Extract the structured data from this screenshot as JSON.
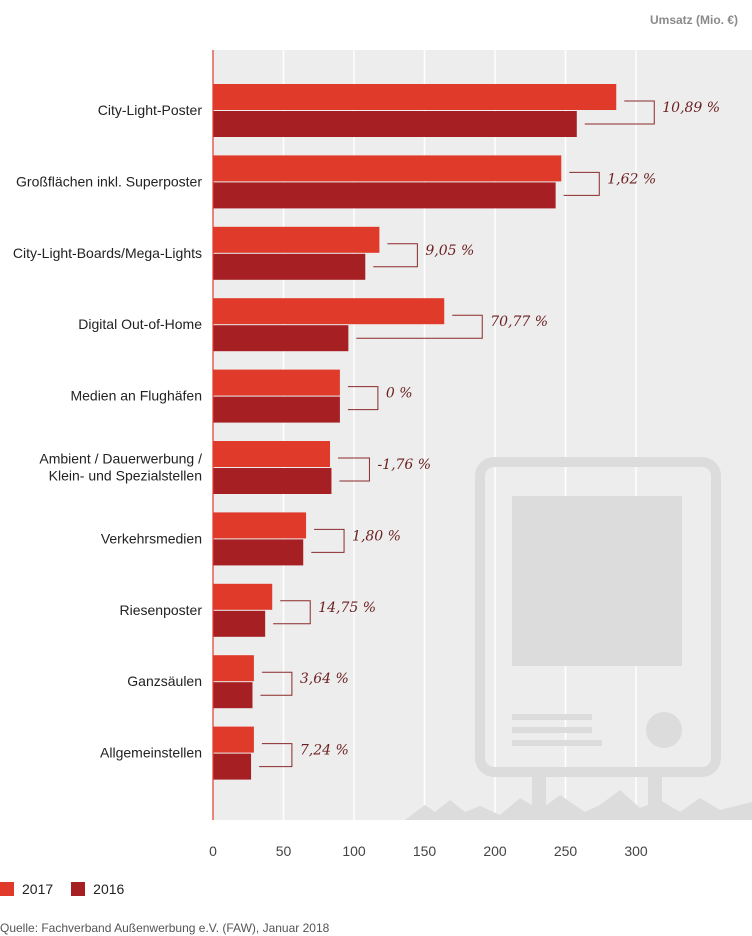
{
  "chart_data": {
    "type": "bar",
    "orientation": "horizontal",
    "unit_label": "Umsatz (Mio. €)",
    "categories": [
      [
        "City-Light-Poster"
      ],
      [
        "Großflächen inkl. Superposter"
      ],
      [
        "City-Light-Boards/Mega-Lights"
      ],
      [
        "Digital Out-of-Home"
      ],
      [
        "Medien an Flughäfen"
      ],
      [
        "Ambient / Dauerwerbung /",
        "Klein- und Spezialstellen"
      ],
      [
        "Verkehrsmedien"
      ],
      [
        "Riesenposter"
      ],
      [
        "Ganzsäulen"
      ],
      [
        "Allgemeinstellen"
      ]
    ],
    "series": [
      {
        "name": "2017",
        "color": "#e03a2a",
        "values": [
          286,
          247,
          118,
          164,
          90,
          83,
          66,
          42,
          29,
          29
        ]
      },
      {
        "name": "2016",
        "color": "#a51f23",
        "values": [
          258,
          243,
          108,
          96,
          90,
          84,
          64,
          37,
          28,
          27
        ]
      }
    ],
    "change_labels": [
      "10,89 %",
      "1,62 %",
      "9,05 %",
      "70,77 %",
      "0 %",
      "-1,76 %",
      "1,80 %",
      "14,75 %",
      "3,64 %",
      "7,24 %"
    ],
    "x_ticks": [
      "0",
      "50",
      "100",
      "150",
      "200",
      "250",
      "300"
    ],
    "xlim": [
      0,
      380
    ],
    "grid": true,
    "legend_position": "bottom-left",
    "background_icon": "billboard-icon"
  },
  "source": "Quelle: Fachverband Außenwerbung e.V. (FAW), Januar 2018"
}
